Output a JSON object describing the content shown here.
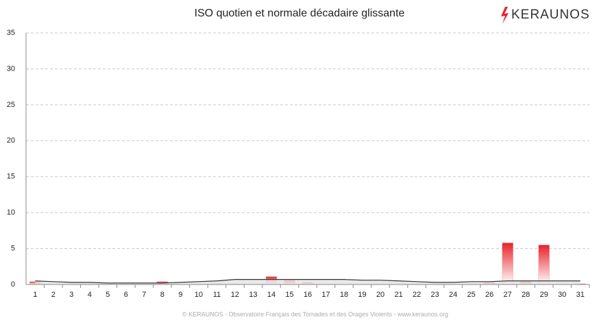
{
  "chart_data": {
    "type": "bar",
    "title": "ISO quotien et normale décadaire glissante",
    "categories": [
      "1",
      "2",
      "3",
      "4",
      "5",
      "6",
      "7",
      "8",
      "9",
      "10",
      "11",
      "12",
      "13",
      "14",
      "15",
      "16",
      "17",
      "18",
      "19",
      "20",
      "21",
      "22",
      "23",
      "24",
      "25",
      "26",
      "27",
      "28",
      "29",
      "30",
      "31"
    ],
    "series": [
      {
        "type": "bar",
        "color": "#e8222a",
        "values": [
          0.4,
          0,
          0,
          0,
          0,
          0,
          0,
          0.4,
          0,
          0,
          0.1,
          0.1,
          0,
          1.1,
          0.6,
          0.3,
          0,
          0,
          0,
          0,
          0,
          0,
          0,
          0,
          0,
          0.3,
          5.8,
          0.4,
          5.5,
          0,
          0.1
        ]
      },
      {
        "type": "area",
        "color": "#333333",
        "values": [
          0.5,
          0.4,
          0.3,
          0.3,
          0.2,
          0.2,
          0.2,
          0.2,
          0.3,
          0.4,
          0.5,
          0.7,
          0.7,
          0.7,
          0.7,
          0.7,
          0.7,
          0.7,
          0.6,
          0.6,
          0.5,
          0.4,
          0.3,
          0.3,
          0.4,
          0.4,
          0.5,
          0.5,
          0.5,
          0.5,
          0.5
        ]
      }
    ],
    "ylim": [
      0,
      35
    ],
    "yticks": [
      0,
      5,
      10,
      15,
      20,
      25,
      30,
      35
    ],
    "grid": true
  },
  "logo": "KERAUNOS",
  "footer": "© KERAUNOS - Observatoire Français des Tornades et des Orages Violents - www.keraunos.org"
}
